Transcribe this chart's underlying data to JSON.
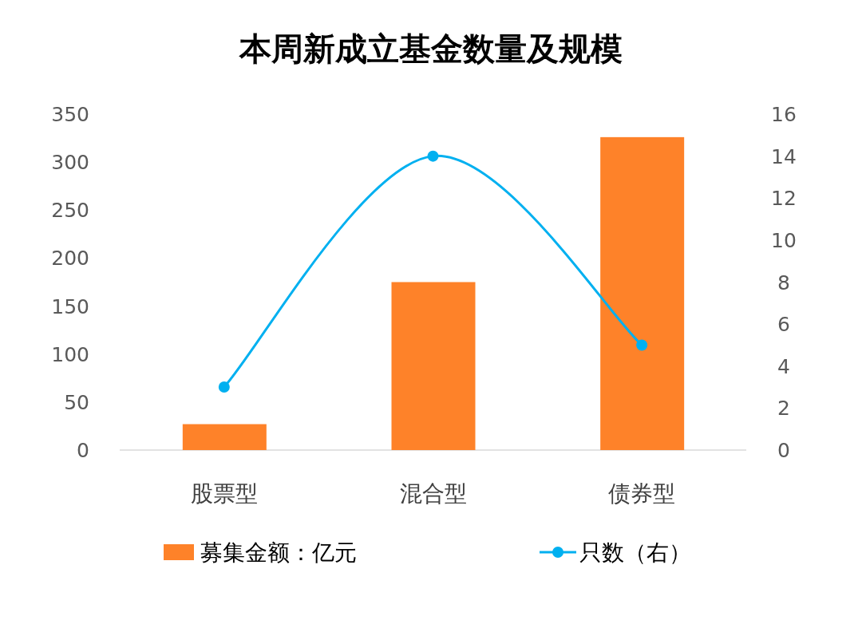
{
  "chart_data": {
    "type": "bar",
    "title": "本周新成立基金数量及规模",
    "categories": [
      "股票型",
      "混合型",
      "债券型"
    ],
    "series": [
      {
        "name": "募集金额：亿元",
        "color": "#fe8229",
        "values": [
          27,
          175,
          326
        ]
      },
      {
        "name": "只数（右）",
        "type": "line",
        "axis": "y2",
        "color": "#00b0f0",
        "values": [
          3,
          14,
          5
        ]
      }
    ],
    "ylim": [
      0,
      350
    ],
    "yticks": [
      0,
      50,
      100,
      150,
      200,
      250,
      300,
      350
    ],
    "y2lim": [
      0,
      16
    ],
    "y2ticks": [
      0,
      2,
      4,
      6,
      8,
      10,
      12,
      14,
      16
    ],
    "legend": "bottom",
    "marker": "circle",
    "grid": false
  }
}
